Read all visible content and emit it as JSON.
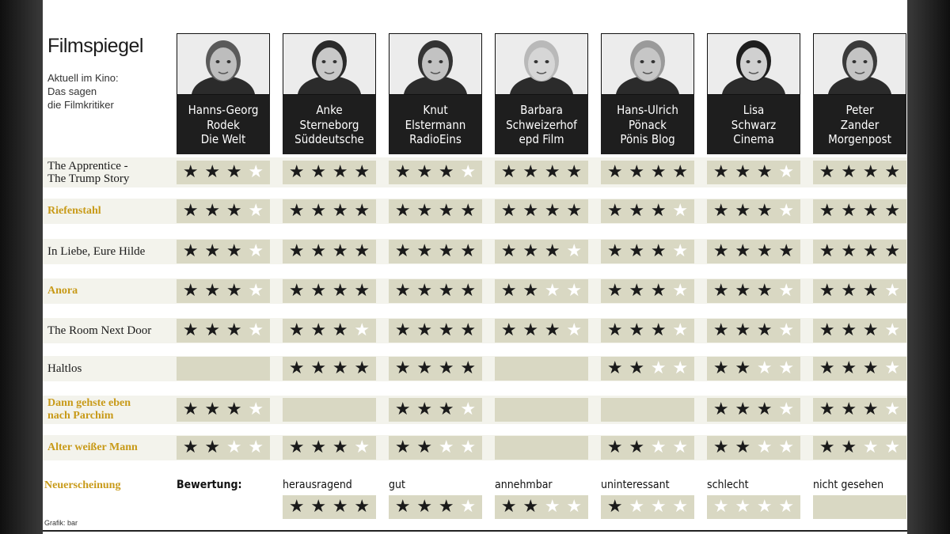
{
  "title": "Filmspiegel",
  "subtitle": [
    "Aktuell im Kino:",
    "Das sagen",
    "die Filmkritiker"
  ],
  "critics": [
    {
      "name1": "Hanns-Georg",
      "name2": "Rodek",
      "outlet": "Die Welt"
    },
    {
      "name1": "Anke",
      "name2": "Sterneborg",
      "outlet": "Süddeutsche"
    },
    {
      "name1": "Knut",
      "name2": "Elstermann",
      "outlet": "RadioEins"
    },
    {
      "name1": "Barbara",
      "name2": "Schweizerhof",
      "outlet": "epd Film"
    },
    {
      "name1": "Hans-Ulrich",
      "name2": "Pönack",
      "outlet": "Pönis Blog"
    },
    {
      "name1": "Lisa",
      "name2": "Schwarz",
      "outlet": "Cinema"
    },
    {
      "name1": "Peter",
      "name2": "Zander",
      "outlet": "Morgenpost"
    }
  ],
  "films": [
    {
      "title": [
        "The Apprentice -",
        "The Trump Story"
      ],
      "new": false,
      "ratings": [
        3,
        4,
        3,
        4,
        4,
        3,
        4
      ]
    },
    {
      "title": [
        "Riefenstahl"
      ],
      "new": true,
      "ratings": [
        3,
        4,
        4,
        4,
        3,
        3,
        4
      ]
    },
    {
      "title": [
        "In Liebe, Eure Hilde"
      ],
      "new": false,
      "ratings": [
        3,
        4,
        4,
        3,
        3,
        4,
        4
      ]
    },
    {
      "title": [
        "Anora"
      ],
      "new": true,
      "ratings": [
        3,
        4,
        4,
        2,
        3,
        3,
        3
      ]
    },
    {
      "title": [
        "The Room Next Door"
      ],
      "new": false,
      "ratings": [
        3,
        3,
        4,
        3,
        3,
        3,
        3
      ]
    },
    {
      "title": [
        "Haltlos"
      ],
      "new": false,
      "ratings": [
        null,
        4,
        4,
        null,
        2,
        2,
        3
      ]
    },
    {
      "title": [
        "Dann gehste eben",
        "nach Parchim"
      ],
      "new": true,
      "ratings": [
        3,
        null,
        3,
        null,
        null,
        3,
        3
      ]
    },
    {
      "title": [
        "Alter weißer Mann"
      ],
      "new": true,
      "ratings": [
        2,
        3,
        2,
        null,
        2,
        2,
        2
      ]
    }
  ],
  "legend": {
    "new_release_label": "Neuerscheinung",
    "rating_label": "Bewertung:",
    "items": [
      {
        "label": "herausragend",
        "stars": 4
      },
      {
        "label": "gut",
        "stars": 3
      },
      {
        "label": "annehmbar",
        "stars": 2
      },
      {
        "label": "uninteressant",
        "stars": 1
      },
      {
        "label": "schlecht",
        "stars": 0
      },
      {
        "label": "nicht gesehen",
        "stars": null
      }
    ]
  },
  "credit": "Grafik: bar",
  "colors": {
    "gold": "#c89a18",
    "cell": "#d9d8c3",
    "row": "#f3f3ec",
    "nameplate": "#1e1e1e"
  }
}
